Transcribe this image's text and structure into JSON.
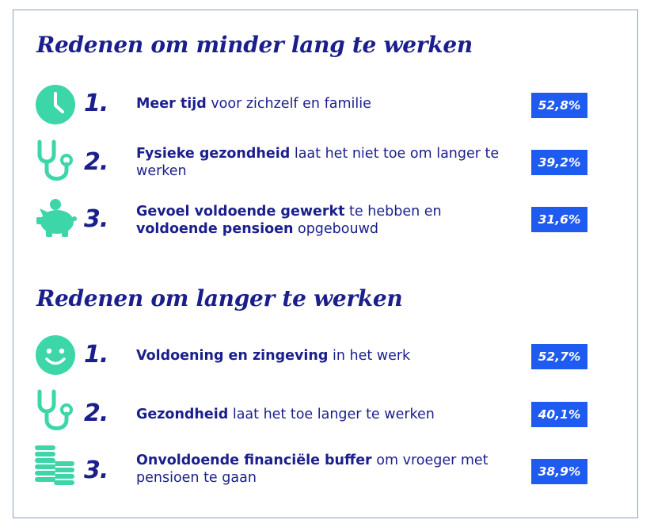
{
  "colors": {
    "navy": "#1a1f8c",
    "teal": "#3dd6a8",
    "badge": "#1f5bf0",
    "border": "#8c9ec4"
  },
  "sections": [
    {
      "title": "Redenen om minder lang te werken",
      "items": [
        {
          "icon": "clock-icon",
          "rank": "1.",
          "bold": "Meer tijd",
          "rest": " voor zichzelf en familie",
          "bold2": "",
          "rest2": "",
          "percent": "52,8%"
        },
        {
          "icon": "stethoscope-icon",
          "rank": "2.",
          "bold": "Fysieke gezondheid",
          "rest": " laat het niet toe om langer te werken",
          "bold2": "",
          "rest2": "",
          "percent": "39,2%"
        },
        {
          "icon": "piggy-bank-icon",
          "rank": "3.",
          "bold": "Gevoel voldoende gewerkt",
          "rest": " te hebben en ",
          "bold2": "voldoende pensioen",
          "rest2": " opgebouwd",
          "percent": "31,6%"
        }
      ]
    },
    {
      "title": "Redenen om langer te werken",
      "items": [
        {
          "icon": "smiley-icon",
          "rank": "1.",
          "bold": "Voldoening en zingeving",
          "rest": " in het werk",
          "bold2": "",
          "rest2": "",
          "percent": "52,7%"
        },
        {
          "icon": "stethoscope-icon",
          "rank": "2.",
          "bold": "Gezondheid",
          "rest": " laat het toe langer te werken",
          "bold2": "",
          "rest2": "",
          "percent": "40,1%"
        },
        {
          "icon": "coin-stack-icon",
          "rank": "3.",
          "bold": "Onvoldoende financiële buffer",
          "rest": " om vroeger met pensioen te gaan",
          "bold2": "",
          "rest2": "",
          "percent": "38,9%"
        }
      ]
    }
  ]
}
